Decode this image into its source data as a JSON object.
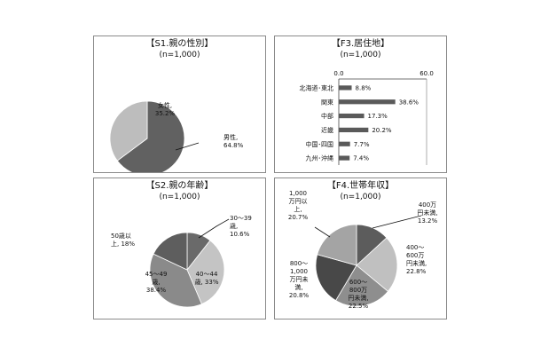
{
  "chart_data": [
    {
      "type": "pie",
      "title": "【S1.親の性別】",
      "subtitle": "(n=1,000)",
      "categories": [
        "男性",
        "女性"
      ],
      "values": [
        64.8,
        35.2
      ],
      "data_labels": [
        [
          "男性,",
          "64.8%"
        ],
        [
          "女性,",
          "35.2%"
        ]
      ],
      "colors": [
        "#616161",
        "#bdbdbd"
      ]
    },
    {
      "type": "bar",
      "orientation": "horizontal",
      "title": "【F3.居住地】",
      "subtitle": "(n=1,000)",
      "categories": [
        "北海道･東北",
        "関東",
        "中部",
        "近畿",
        "中国･四国",
        "九州･沖縄"
      ],
      "values": [
        8.8,
        38.6,
        17.3,
        20.2,
        7.7,
        7.4
      ],
      "value_labels": [
        "8.8%",
        "38.6%",
        "17.3%",
        "20.2%",
        "7.7%",
        "7.4%"
      ],
      "xlim": [
        0,
        60
      ],
      "x_ticks": [
        "0.0",
        "60.0"
      ],
      "bar_color": "#5a5a5a"
    },
    {
      "type": "pie",
      "title": "【S2.親の年齢】",
      "subtitle": "(n=1,000)",
      "categories": [
        "30～39歳",
        "40～44歳",
        "45～49歳",
        "50歳以上"
      ],
      "values": [
        10.6,
        33,
        38.4,
        18
      ],
      "data_labels": [
        [
          "30～39",
          "歳,",
          "10.6%"
        ],
        [
          "40～44",
          "歳, 33%"
        ],
        [
          "45～49",
          "歳,",
          "38.4%"
        ],
        [
          "50歳以",
          "上, 18%"
        ]
      ],
      "colors": [
        "#6a6a6a",
        "#c4c4c4",
        "#8a8a8a",
        "#5e5e5e"
      ]
    },
    {
      "type": "pie",
      "title": "【F4.世帯年収】",
      "subtitle": "(n=1,000)",
      "categories": [
        "400万円未満",
        "400～600万円未満",
        "600～800万円未満",
        "800～1,000万円未満",
        "1,000万円以上"
      ],
      "values": [
        13.2,
        22.8,
        22.5,
        20.8,
        20.7
      ],
      "data_labels": [
        [
          "400万",
          "円未満,",
          "13.2%"
        ],
        [
          "400～",
          "600万",
          "円未満,",
          "22.8%"
        ],
        [
          "600～",
          "800万",
          "円未満,",
          "22.5%"
        ],
        [
          "800～",
          "1,000",
          "万円未",
          "満,",
          "20.8%"
        ],
        [
          "1,000",
          "万円以",
          "上,",
          "20.7%"
        ]
      ],
      "colors": [
        "#5c5c5c",
        "#c0c0c0",
        "#8e8e8e",
        "#484848",
        "#a4a4a4"
      ]
    }
  ]
}
